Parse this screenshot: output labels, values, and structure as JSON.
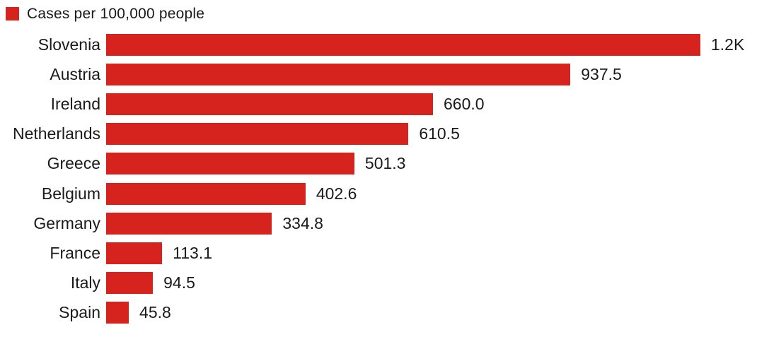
{
  "legend": {
    "label": "Cases per 100,000 people",
    "swatch_color": "#d7231e"
  },
  "chart_data": {
    "type": "bar",
    "orientation": "horizontal",
    "title": "Cases per 100,000 people",
    "xlabel": "",
    "ylabel": "",
    "categories": [
      "Slovenia",
      "Austria",
      "Ireland",
      "Netherlands",
      "Greece",
      "Belgium",
      "Germany",
      "France",
      "Italy",
      "Spain"
    ],
    "values": [
      1200,
      937.5,
      660.0,
      610.5,
      501.3,
      402.6,
      334.8,
      113.1,
      94.5,
      45.8
    ],
    "value_labels": [
      "1.2K",
      "937.5",
      "660.0",
      "610.5",
      "501.3",
      "402.6",
      "334.8",
      "113.1",
      "94.5",
      "45.8"
    ],
    "xlim": [
      0,
      1200
    ],
    "grid": false,
    "legend_position": "top-left",
    "bar_color": "#d7231e",
    "text_color": "#1a1a1a"
  }
}
